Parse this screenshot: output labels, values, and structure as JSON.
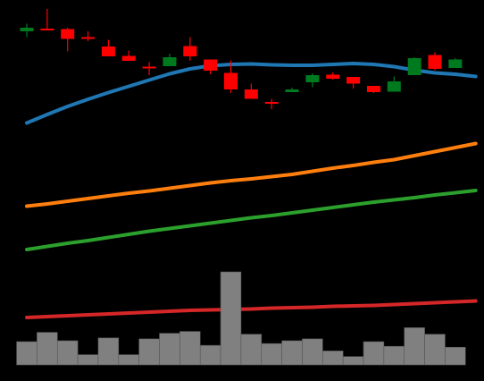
{
  "chart_data": [
    {
      "type": "candlestick",
      "background": "#000000",
      "up_color": "#007a1e",
      "down_color": "#ff0000",
      "ylim": [
        0,
        100
      ],
      "grid": false,
      "candles": [
        {
          "o": 94.0,
          "c": 95.6,
          "h": 97.4,
          "l": 91.4
        },
        {
          "o": 95.2,
          "c": 94.4,
          "h": 104.0,
          "l": 94.4
        },
        {
          "o": 95.0,
          "c": 90.6,
          "h": 95.6,
          "l": 85.0
        },
        {
          "o": 91.4,
          "c": 91.0,
          "h": 94.0,
          "l": 89.6
        },
        {
          "o": 87.2,
          "c": 82.8,
          "h": 90.2,
          "l": 82.8
        },
        {
          "o": 83.0,
          "c": 80.8,
          "h": 85.4,
          "l": 80.8
        },
        {
          "o": 78.2,
          "c": 77.8,
          "h": 80.2,
          "l": 74.4
        },
        {
          "o": 78.4,
          "c": 82.4,
          "h": 84.0,
          "l": 78.4
        },
        {
          "o": 87.4,
          "c": 82.8,
          "h": 91.4,
          "l": 80.8
        },
        {
          "o": 81.4,
          "c": 76.4,
          "h": 81.4,
          "l": 74.8
        },
        {
          "o": 75.4,
          "c": 68.0,
          "h": 81.0,
          "l": 66.4
        },
        {
          "o": 68.0,
          "c": 63.8,
          "h": 70.6,
          "l": 63.8
        },
        {
          "o": 62.4,
          "c": 62.0,
          "h": 63.8,
          "l": 59.2
        },
        {
          "o": 66.8,
          "c": 68.0,
          "h": 68.8,
          "l": 66.8
        },
        {
          "o": 71.2,
          "c": 74.4,
          "h": 75.2,
          "l": 69.0
        },
        {
          "o": 74.6,
          "c": 72.8,
          "h": 75.6,
          "l": 72.4
        },
        {
          "o": 73.6,
          "c": 70.6,
          "h": 73.6,
          "l": 68.4
        },
        {
          "o": 69.6,
          "c": 66.8,
          "h": 69.6,
          "l": 66.4
        },
        {
          "o": 67.0,
          "c": 71.6,
          "h": 73.8,
          "l": 67.0
        },
        {
          "o": 74.4,
          "c": 82.0,
          "h": 82.4,
          "l": 74.4
        },
        {
          "o": 83.4,
          "c": 77.2,
          "h": 84.6,
          "l": 76.6
        },
        {
          "o": 77.6,
          "c": 81.4,
          "h": 82.0,
          "l": 77.6
        }
      ],
      "lines": [
        {
          "color": "#1f77b4",
          "values": [
            53,
            56.8,
            60.4,
            63.6,
            66.6,
            69.4,
            72.2,
            75,
            77.2,
            78.6,
            79.2,
            79.4,
            79,
            78.8,
            78.8,
            79.2,
            79.6,
            79.2,
            78.2,
            76.6,
            75.4,
            74.8,
            73.8
          ]
        },
        {
          "color": "#ff7f0e",
          "values": [
            15.8,
            16.8,
            18,
            19.2,
            20.4,
            21.6,
            22.6,
            23.8,
            25,
            26.2,
            27.2,
            28,
            29,
            30,
            31.4,
            32.8,
            34,
            35.4,
            36.6,
            38.4,
            40.2,
            42,
            43.8
          ]
        },
        {
          "color": "#2ca02c",
          "values": [
            -3.6,
            -2.2,
            -0.8,
            0.4,
            1.8,
            3.2,
            4.6,
            5.8,
            7,
            8.2,
            9.4,
            10.6,
            11.6,
            12.8,
            14,
            15.2,
            16.4,
            17.6,
            18.6,
            19.6,
            20.8,
            21.8,
            22.8
          ]
        },
        {
          "color": "#d62728",
          "values": [
            -34,
            -33.6,
            -33.2,
            -32.8,
            -32.4,
            -32,
            -31.6,
            -31.2,
            -30.8,
            -30.6,
            -30.4,
            -30.2,
            -29.8,
            -29.6,
            -29.4,
            -29,
            -28.8,
            -28.6,
            -28.2,
            -27.8,
            -27.4,
            -27,
            -26.6
          ]
        }
      ]
    },
    {
      "type": "bar",
      "color": "#808080",
      "ylim": [
        0,
        100
      ],
      "values": [
        25,
        35,
        26,
        11,
        29,
        11,
        28,
        34,
        36,
        21,
        100,
        33,
        23,
        26,
        28,
        15,
        9,
        25,
        20,
        40,
        33,
        19
      ]
    }
  ]
}
